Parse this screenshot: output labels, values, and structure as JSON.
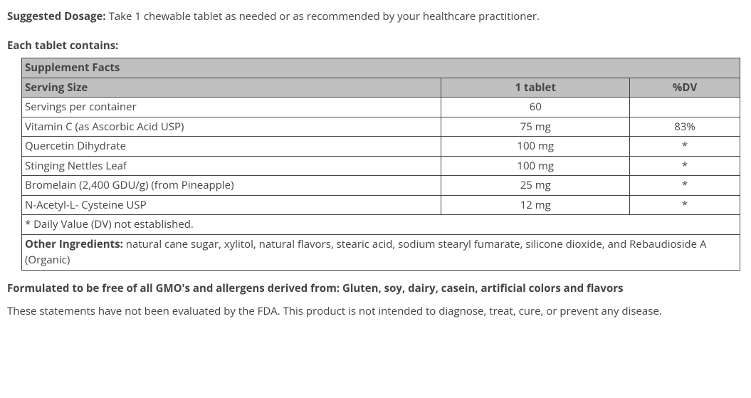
{
  "dosage": {
    "label": "Suggested Dosage:",
    "text": " Take 1 chewable tablet as needed or as recommended by your healthcare practitioner."
  },
  "contains_heading": "Each tablet contains:",
  "table": {
    "title": "Supplement Facts",
    "serving_label": "Serving Size",
    "serving_amount": "1 tablet",
    "dv_header": "%DV",
    "rows": [
      {
        "name": "Servings per container",
        "amount": "60",
        "dv": ""
      },
      {
        "name": "Vitamin C (as Ascorbic Acid USP)",
        "amount": "75 mg",
        "dv": "83%"
      },
      {
        "name": "Quercetin Dihydrate",
        "amount": "100 mg",
        "dv": "*"
      },
      {
        "name": "Stinging Nettles Leaf",
        "amount": "100 mg",
        "dv": "*"
      },
      {
        "name": "Bromelain (2,400 GDU/g) (from Pineapple)",
        "amount": "25 mg",
        "dv": "*"
      },
      {
        "name": "N-Acetyl-L- Cysteine USP",
        "amount": "12 mg",
        "dv": "*"
      }
    ],
    "footnote": "* Daily Value (DV) not established.",
    "other_label": "Other Ingredients:",
    "other_text": " natural cane sugar, xylitol, natural flavors, stearic acid, sodium stearyl fumarate, silicone dioxide, and Rebaudioside A (Organic)"
  },
  "footer": {
    "free_from": "Formulated to be free of all GMO's and allergens derived from: Gluten, soy, dairy, casein, artificial colors and flavors",
    "fda": "These statements have not been evaluated by the FDA. This product is not intended to diagnose, treat, cure, or prevent any disease."
  }
}
